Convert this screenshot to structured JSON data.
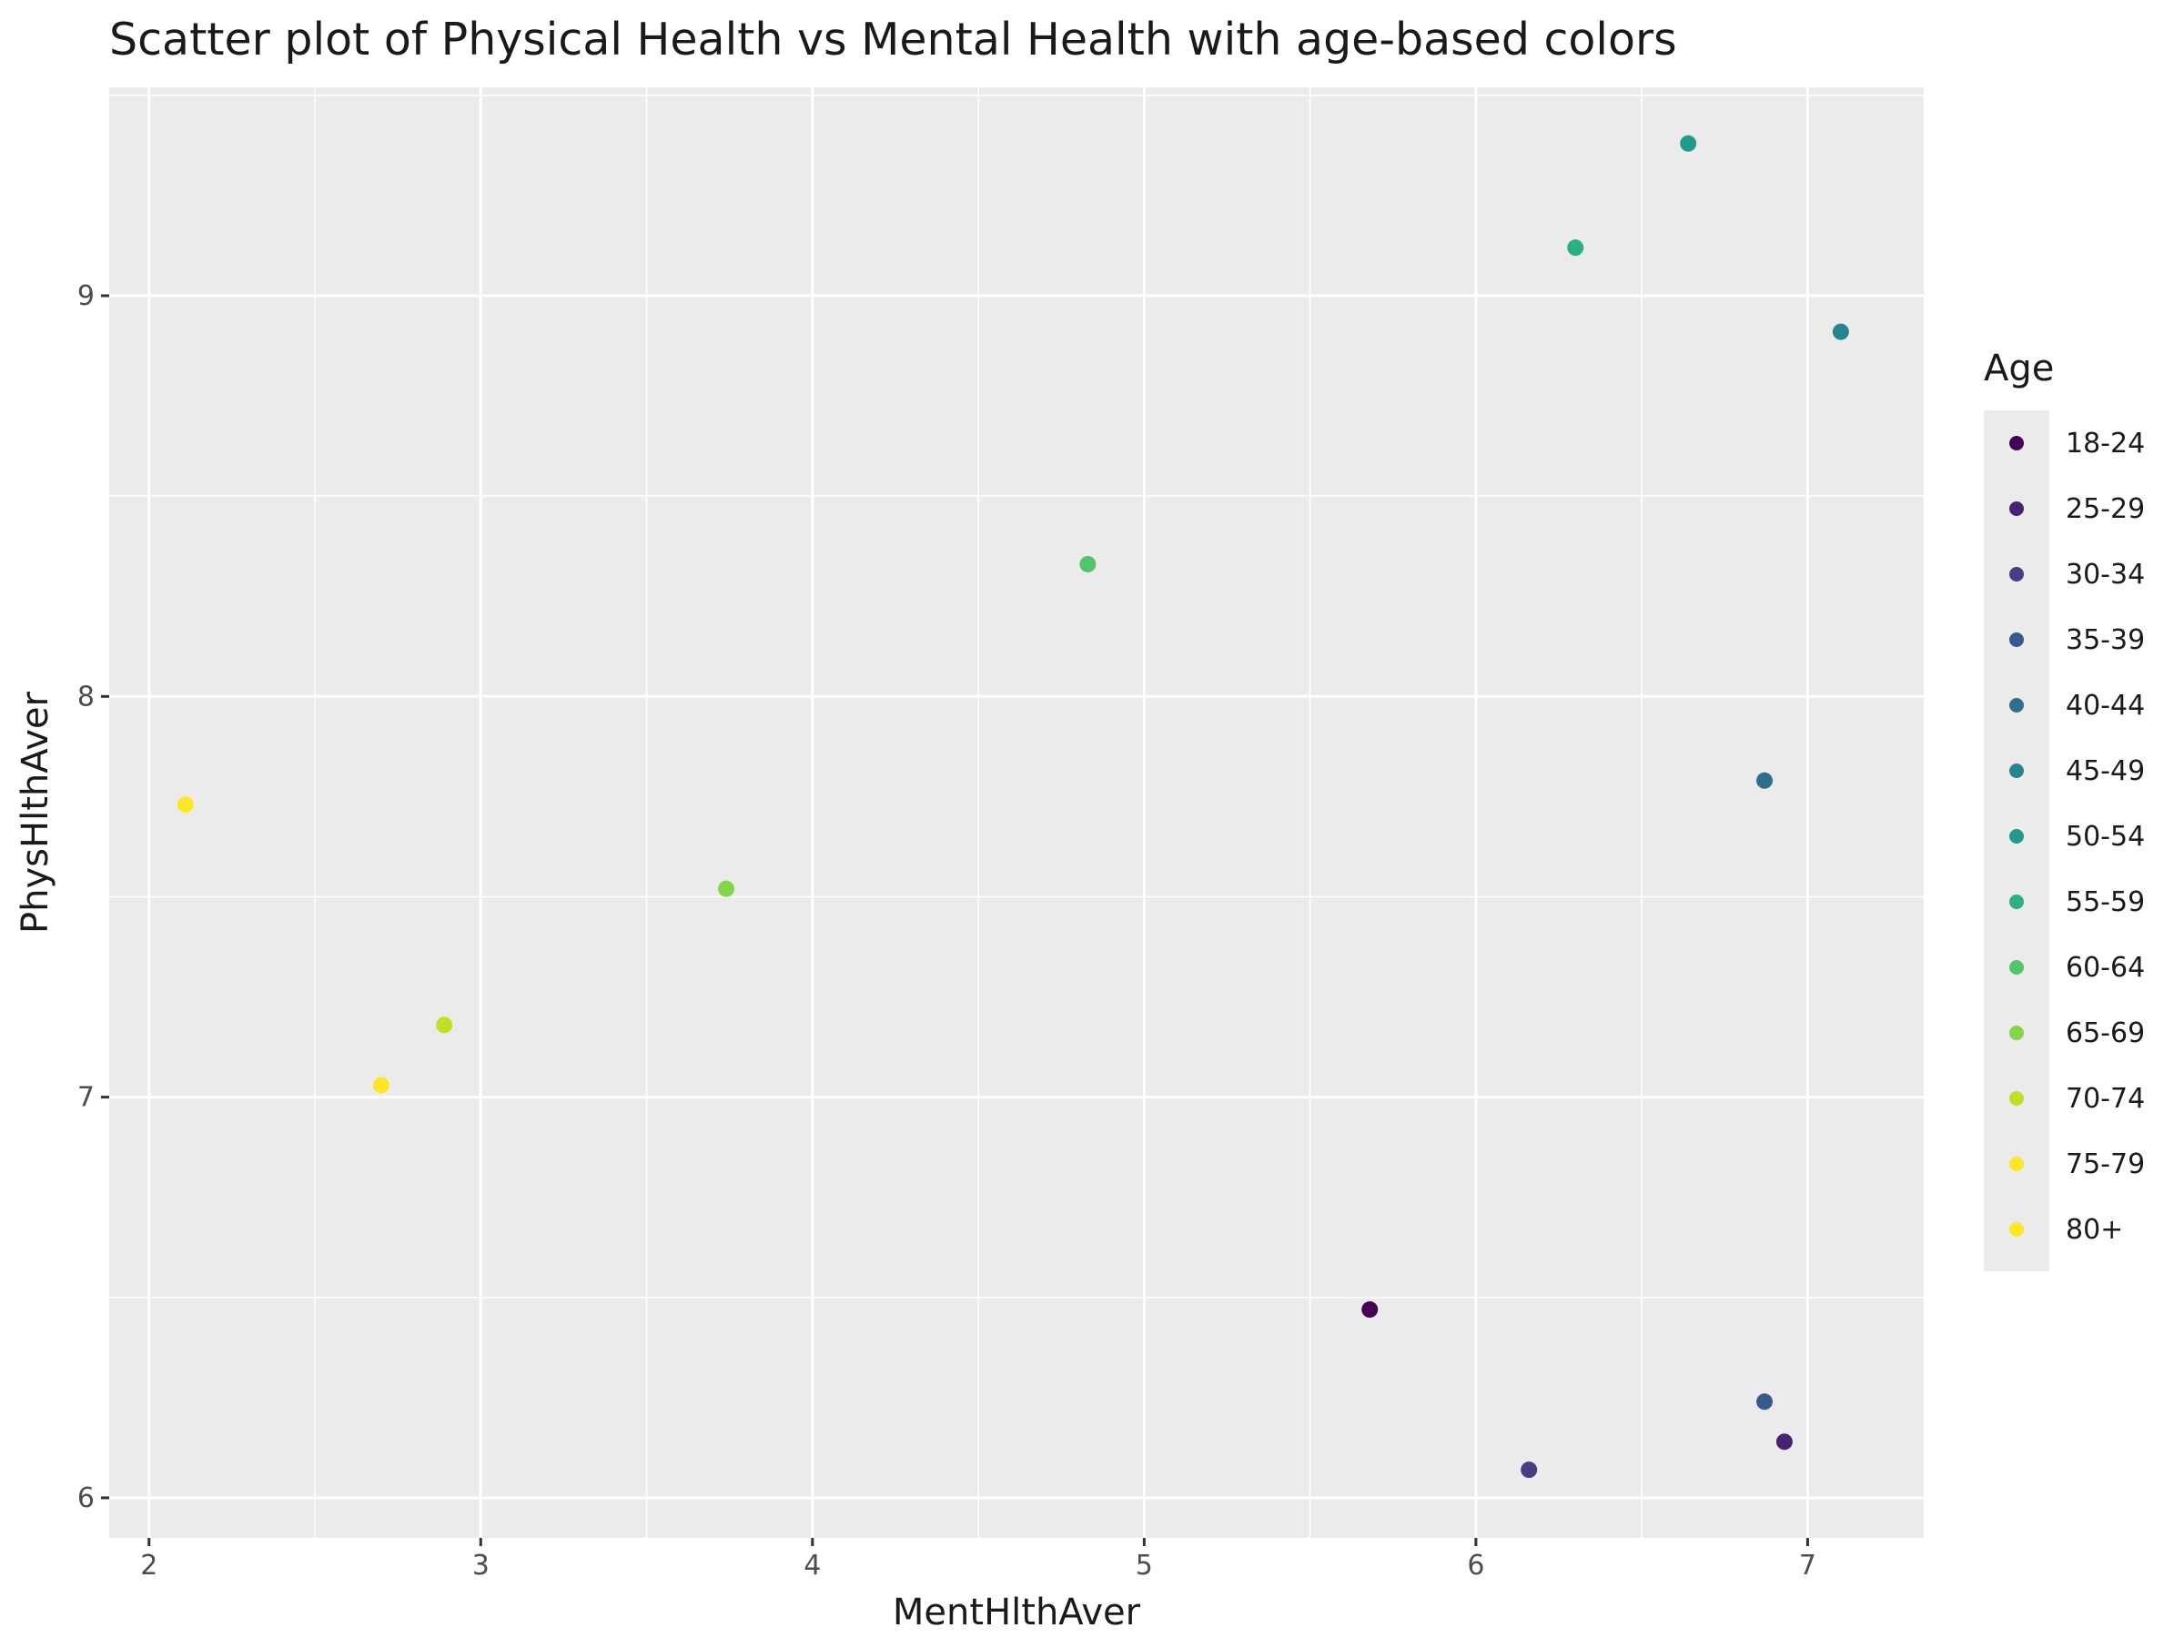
{
  "chart_data": {
    "type": "scatter",
    "title": "Scatter plot of Physical Health vs Mental Health with age-based colors",
    "xlabel": "MentHlthAver",
    "ylabel": "PhysHlthAver",
    "xlim": [
      1.88,
      7.35
    ],
    "ylim": [
      5.9,
      9.52
    ],
    "x_ticks": [
      2,
      3,
      4,
      5,
      6,
      7
    ],
    "y_ticks": [
      6,
      7,
      8,
      9
    ],
    "grid": true,
    "legend": {
      "title": "Age",
      "position": "right"
    },
    "series": [
      {
        "name": "18-24",
        "color": "#440154",
        "x": 5.68,
        "y": 6.47
      },
      {
        "name": "25-29",
        "color": "#482173",
        "x": 6.93,
        "y": 6.14
      },
      {
        "name": "30-34",
        "color": "#433E85",
        "x": 6.16,
        "y": 6.07
      },
      {
        "name": "35-39",
        "color": "#38598C",
        "x": 6.87,
        "y": 6.24
      },
      {
        "name": "40-44",
        "color": "#2D708E",
        "x": 6.87,
        "y": 7.79
      },
      {
        "name": "45-49",
        "color": "#25858E",
        "x": 7.1,
        "y": 8.91
      },
      {
        "name": "50-54",
        "color": "#1E9B8A",
        "x": 6.64,
        "y": 9.38
      },
      {
        "name": "55-59",
        "color": "#2BB07F",
        "x": 6.3,
        "y": 9.12
      },
      {
        "name": "60-64",
        "color": "#51C56A",
        "x": 4.83,
        "y": 8.33
      },
      {
        "name": "65-69",
        "color": "#85D54A",
        "x": 3.74,
        "y": 7.52
      },
      {
        "name": "70-74",
        "color": "#C2DF23",
        "x": 2.89,
        "y": 7.18
      },
      {
        "name": "75-79",
        "color": "#FDE725",
        "x": 2.7,
        "y": 7.03
      },
      {
        "name": "80+",
        "color": "#FDE725",
        "x": 2.11,
        "y": 7.73
      }
    ]
  }
}
